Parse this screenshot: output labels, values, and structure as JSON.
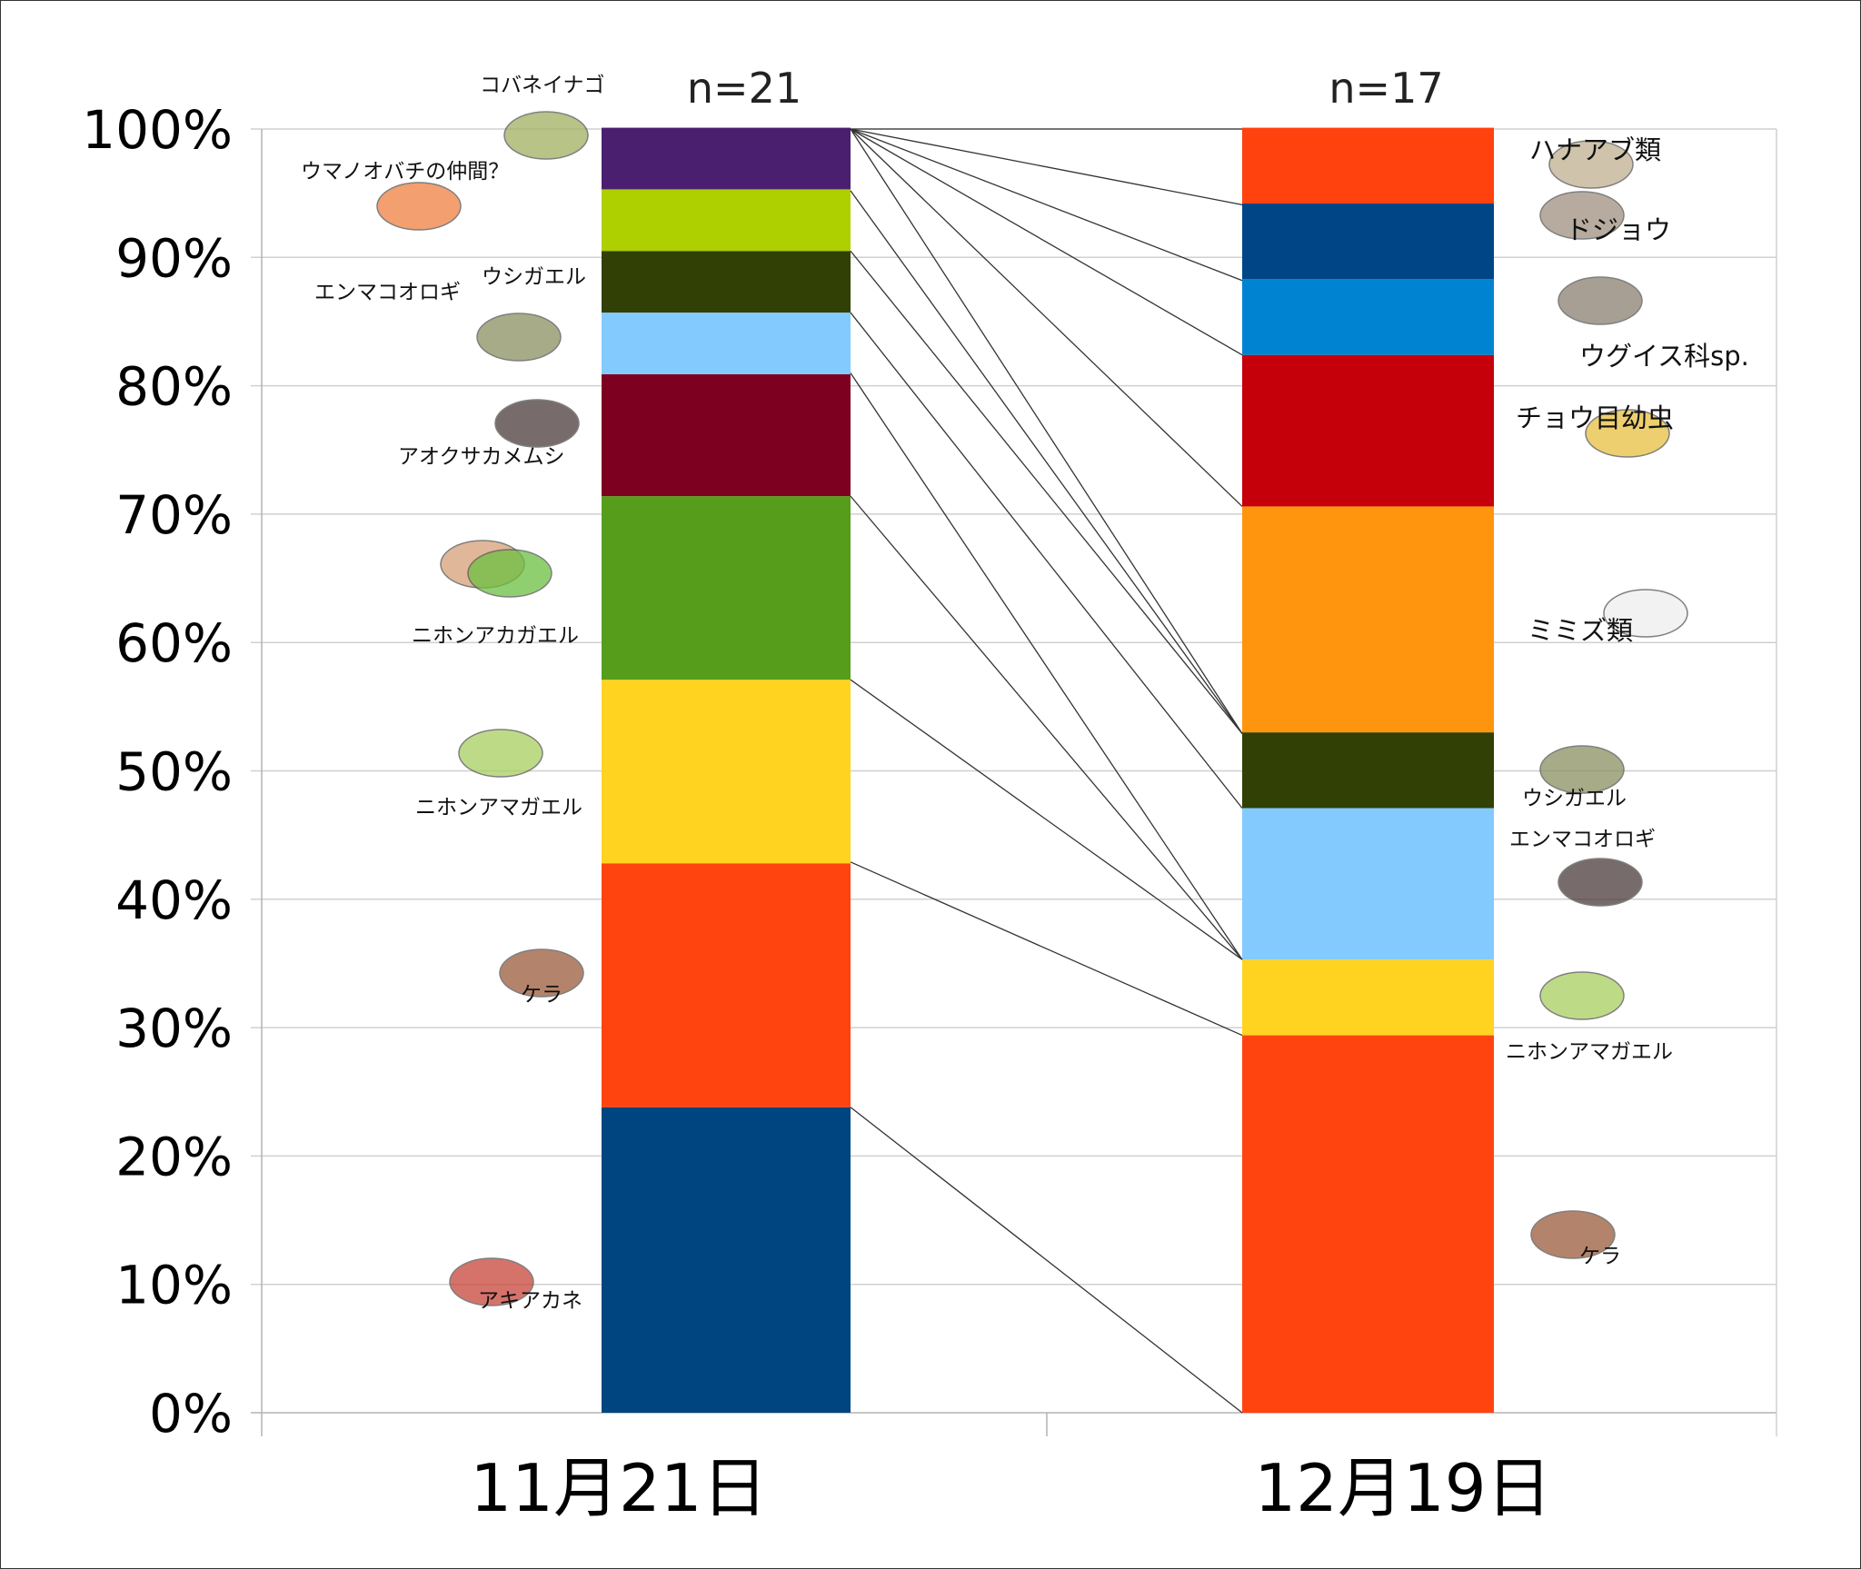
{
  "chart_data": {
    "type": "bar",
    "stacked": true,
    "percent": true,
    "categories": [
      "11月21日",
      "12月19日"
    ],
    "sample_sizes": [
      "n=21",
      "n=17"
    ],
    "ylim": [
      0,
      100
    ],
    "yticks": [
      "0%",
      "10%",
      "20%",
      "30%",
      "40%",
      "50%",
      "60%",
      "70%",
      "80%",
      "90%",
      "100%"
    ],
    "grid": true,
    "bars": [
      {
        "category": "11月21日",
        "n_label": "n=21",
        "segments": [
          {
            "name": "アキアカネ",
            "value": 23.8,
            "color": "#00457f"
          },
          {
            "name": "ケラ",
            "value": 19.0,
            "color": "#ff4410"
          },
          {
            "name": "ニホンアマガエル",
            "value": 14.3,
            "color": "#ffd320"
          },
          {
            "name": "ニホンアカガエル",
            "value": 14.3,
            "color": "#579d1c"
          },
          {
            "name": "アオクサカメムシ",
            "value": 9.5,
            "color": "#7e0021"
          },
          {
            "name": "エンマコオロギ",
            "value": 4.8,
            "color": "#83caff"
          },
          {
            "name": "ウシガエル",
            "value": 4.8,
            "color": "#314004"
          },
          {
            "name": "ウマノオバチの仲間？",
            "value": 4.8,
            "color": "#aecf00"
          },
          {
            "name": "コバネイナゴ",
            "value": 4.8,
            "color": "#4b1f6f"
          }
        ]
      },
      {
        "category": "12月19日",
        "n_label": "n=17",
        "segments": [
          {
            "name": "ケラ",
            "value": 29.4,
            "color": "#ff4410"
          },
          {
            "name": "ニホンアマガエル",
            "value": 5.9,
            "color": "#ffd320"
          },
          {
            "name": "エンマコオロギ",
            "value": 11.8,
            "color": "#83caff"
          },
          {
            "name": "ウシガエル",
            "value": 5.9,
            "color": "#314004"
          },
          {
            "name": "ミミズ類",
            "value": 17.6,
            "color": "#ff950e"
          },
          {
            "name": "チョウ目幼虫",
            "value": 11.8,
            "color": "#c5000b"
          },
          {
            "name": "ウグイス科sp.",
            "value": 5.9,
            "color": "#0084d1"
          },
          {
            "name": "ドジョウ",
            "value": 5.9,
            "color": "#004586"
          },
          {
            "name": "ハナアブ類",
            "value": 5.9,
            "color": "#ff420e"
          }
        ]
      }
    ],
    "connectors": [
      [
        100,
        100
      ],
      [
        100,
        94.1
      ],
      [
        100,
        88.2
      ],
      [
        100,
        82.4
      ],
      [
        100,
        70.6
      ],
      [
        100,
        52.9
      ],
      [
        95.2,
        52.9
      ],
      [
        90.5,
        52.9
      ],
      [
        85.7,
        47.1
      ],
      [
        81.0,
        35.3
      ],
      [
        71.4,
        35.3
      ],
      [
        57.1,
        35.3
      ],
      [
        42.9,
        29.4
      ],
      [
        23.8,
        0
      ]
    ]
  }
}
